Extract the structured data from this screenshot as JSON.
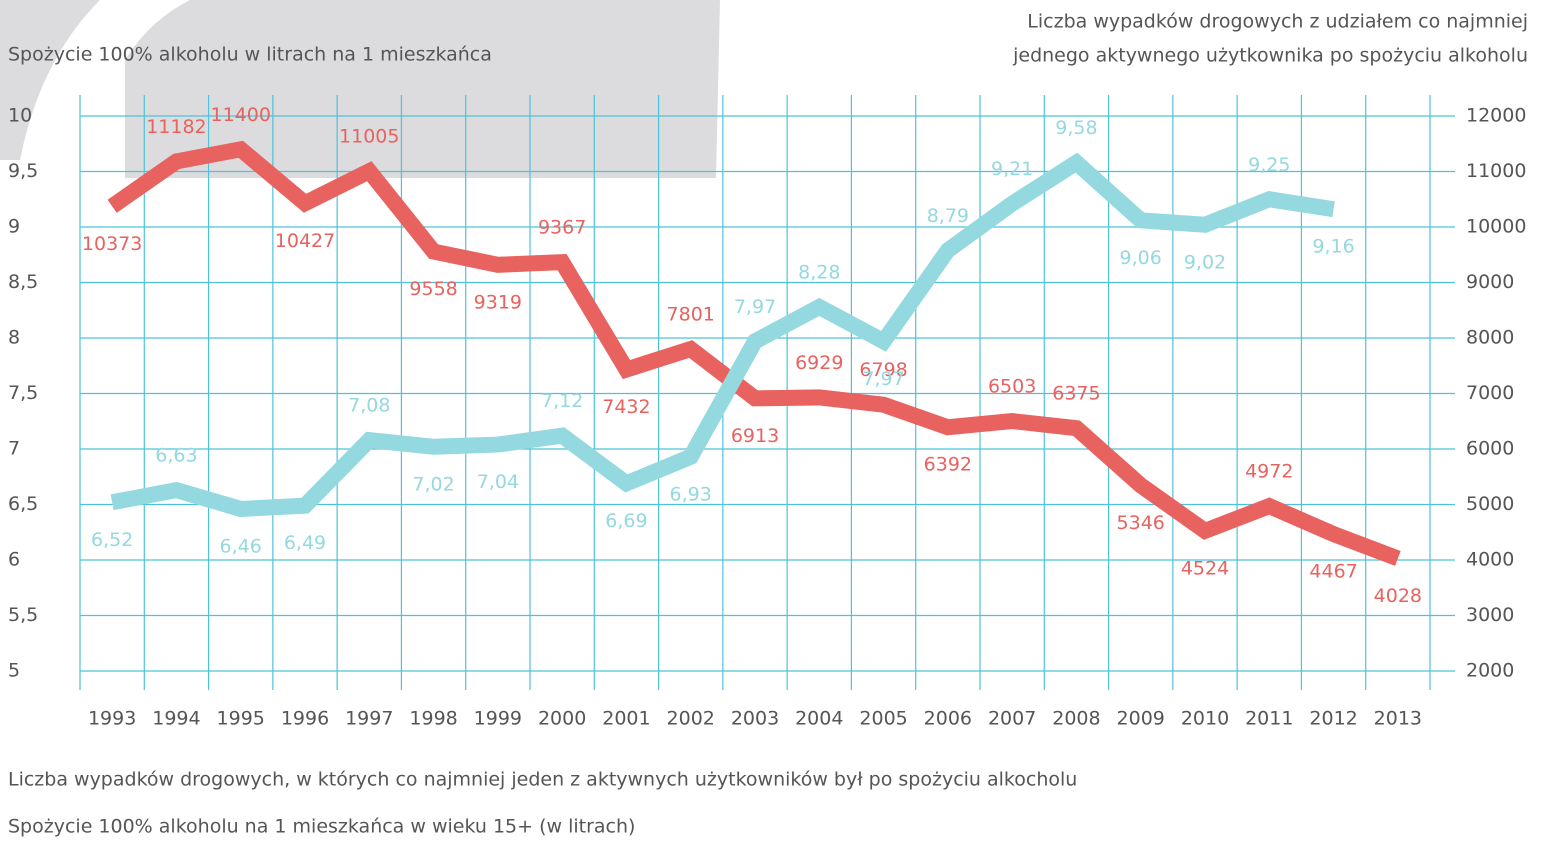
{
  "chart_data": {
    "type": "line",
    "ylabel": "Spożycie 100% alkoholu w litrach na 1 mieszkańca",
    "y2label": [
      "Liczba wypadków drogowych z udziałem co najmniej",
      "jednego aktywnego użytkownika po spożyciu alkoholu"
    ],
    "categories": [
      "1993",
      "1994",
      "1995",
      "1996",
      "1997",
      "1998",
      "1999",
      "2000",
      "2001",
      "2002",
      "2003",
      "2004",
      "2005",
      "2006",
      "2007",
      "2008",
      "2009",
      "2010",
      "2011",
      "2012",
      "2013"
    ],
    "series": [
      {
        "name": "Liczba wypadków drogowych, w których co najmniej jeden z aktywnych użytkowników był po spożyciu alkocholu",
        "color": "#e8625f",
        "axis": "y2",
        "values": [
          10373,
          11182,
          11400,
          10427,
          11005,
          9558,
          9319,
          9367,
          7432,
          7801,
          6913,
          6929,
          6798,
          6392,
          6503,
          6375,
          5346,
          4524,
          4972,
          4467,
          4028
        ]
      },
      {
        "name": "Spożycie 100% alkoholu na 1 mieszkańca w wieku 15+ (w litrach)",
        "color": "#94d8e0",
        "values": [
          6.52,
          6.63,
          6.46,
          6.49,
          7.08,
          7.02,
          7.04,
          7.12,
          6.69,
          6.93,
          7.97,
          8.28,
          7.97,
          8.79,
          9.21,
          9.58,
          9.06,
          9.02,
          9.25,
          9.16,
          null
        ],
        "value_labels": [
          "6,52",
          "6,63",
          "6,46",
          "6,49",
          "7,08",
          "7,02",
          "7,04",
          "7,12",
          "6,69",
          "6,93",
          "7,97",
          "8,28",
          "7,97",
          "8,79",
          "9,21",
          "9,58",
          "9,06",
          "9,02",
          "9,25",
          "9,16",
          null
        ]
      }
    ],
    "ylim": [
      5,
      10
    ],
    "yticks": [
      5,
      {
        "value": 5.5,
        "label": "5,5"
      },
      6,
      {
        "value": 6.5,
        "label": "6,5"
      },
      7,
      {
        "value": 7.5,
        "label": "7,5"
      },
      8,
      {
        "value": 8.5,
        "label": "8,5"
      },
      9,
      {
        "value": 9.5,
        "label": "9,5"
      },
      10
    ],
    "y2lim": [
      2000,
      12000
    ],
    "y2ticks": [
      2000,
      3000,
      4000,
      5000,
      6000,
      7000,
      8000,
      9000,
      10000,
      11000,
      12000
    ],
    "grid": true
  }
}
